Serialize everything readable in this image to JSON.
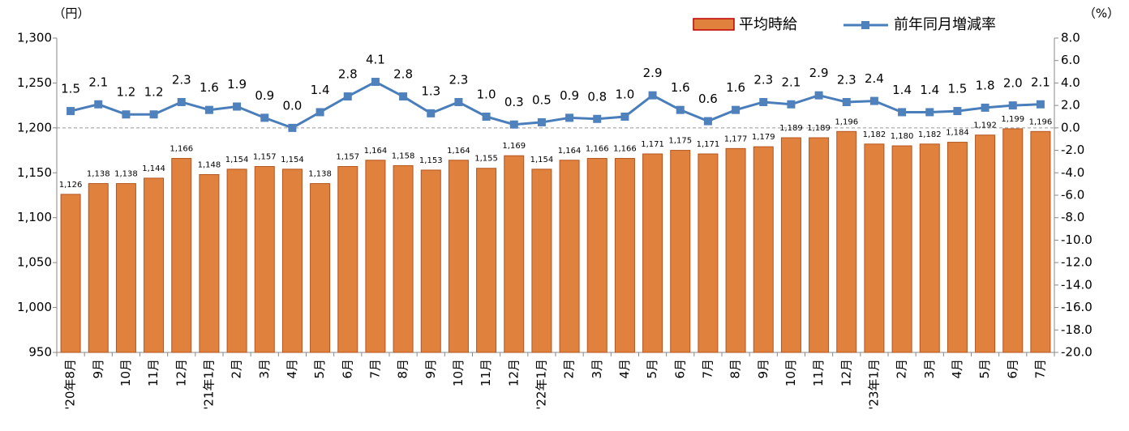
{
  "chart_data": {
    "type": "combo",
    "y_unit": "（円）",
    "y2_unit": "（%）",
    "categories": [
      "'20年8月",
      "9月",
      "10月",
      "11月",
      "12月",
      "'21年1月",
      "2月",
      "3月",
      "4月",
      "5月",
      "6月",
      "7月",
      "8月",
      "9月",
      "10月",
      "11月",
      "12月",
      "'22年1月",
      "2月",
      "3月",
      "4月",
      "5月",
      "6月",
      "7月",
      "8月",
      "9月",
      "10月",
      "11月",
      "12月",
      "'23年1月",
      "2月",
      "3月",
      "4月",
      "5月",
      "6月",
      "7月"
    ],
    "series": [
      {
        "name": "平均時給",
        "type": "bar",
        "color": "#e1813e",
        "edge_color": "#b4541c",
        "values": [
          1126,
          1138,
          1138,
          1144,
          1166,
          1148,
          1154,
          1157,
          1154,
          1138,
          1157,
          1164,
          1158,
          1153,
          1164,
          1155,
          1169,
          1154,
          1164,
          1166,
          1166,
          1171,
          1175,
          1171,
          1177,
          1179,
          1189,
          1189,
          1196,
          1182,
          1180,
          1182,
          1184,
          1192,
          1199,
          1196
        ],
        "value_labels": [
          "1,126",
          "1,138",
          "1,138",
          "1,144",
          "1,166",
          "1,148",
          "1,154",
          "1,157",
          "1,154",
          "1,138",
          "1,157",
          "1,164",
          "1,158",
          "1,153",
          "1,164",
          "1,155",
          "1,169",
          "1,154",
          "1,164",
          "1,166",
          "1,166",
          "1,171",
          "1,175",
          "1,171",
          "1,177",
          "1,179",
          "1,189",
          "1,189",
          "1,196",
          "1,182",
          "1,180",
          "1,182",
          "1,184",
          "1,192",
          "1,199",
          "1,196"
        ]
      },
      {
        "name": "前年同月増減率",
        "type": "line",
        "axis": "y2",
        "color": "#4a7ebb",
        "marker_color": "#4f81bd",
        "values": [
          1.5,
          2.1,
          1.2,
          1.2,
          2.3,
          1.6,
          1.9,
          0.9,
          0.0,
          1.4,
          2.8,
          4.1,
          2.8,
          1.3,
          2.3,
          1.0,
          0.3,
          0.5,
          0.9,
          0.8,
          1.0,
          2.9,
          1.6,
          0.6,
          1.6,
          2.3,
          2.1,
          2.9,
          2.3,
          2.4,
          1.4,
          1.4,
          1.5,
          1.8,
          2.0,
          2.1
        ],
        "value_labels": [
          "1.5",
          "2.1",
          "1.2",
          "1.2",
          "2.3",
          "1.6",
          "1.9",
          "0.9",
          "0.0",
          "1.4",
          "2.8",
          "4.1",
          "2.8",
          "1.3",
          "2.3",
          "1.0",
          "0.3",
          "0.5",
          "0.9",
          "0.8",
          "1.0",
          "2.9",
          "1.6",
          "0.6",
          "1.6",
          "2.3",
          "2.1",
          "2.9",
          "2.3",
          "2.4",
          "1.4",
          "1.4",
          "1.5",
          "1.8",
          "2.0",
          "2.1"
        ]
      }
    ],
    "ylim": [
      950,
      1300
    ],
    "yticks": [
      950,
      {
        "value": 1000,
        "label": "1,000"
      },
      {
        "value": 1050,
        "label": "1,050"
      },
      {
        "value": 1100,
        "label": "1,100"
      },
      {
        "value": 1150,
        "label": "1,150"
      },
      {
        "value": 1200,
        "label": "1,200"
      },
      {
        "value": 1250,
        "label": "1,250"
      },
      {
        "value": 1300,
        "label": "1,300"
      }
    ],
    "y2lim": [
      -20,
      8
    ],
    "y2ticks": [
      {
        "value": -20,
        "label": "-20.0"
      },
      {
        "value": -18,
        "label": "-18.0"
      },
      {
        "value": -16,
        "label": "-16.0"
      },
      {
        "value": -14,
        "label": "-14.0"
      },
      {
        "value": -12,
        "label": "-12.0"
      },
      {
        "value": -10,
        "label": "-10.0"
      },
      {
        "value": -8,
        "label": "-8.0"
      },
      {
        "value": -6,
        "label": "-6.0"
      },
      {
        "value": -4,
        "label": "-4.0"
      },
      {
        "value": -2,
        "label": "-2.0"
      },
      {
        "value": 0,
        "label": "0.0"
      },
      {
        "value": 2,
        "label": "2.0"
      },
      {
        "value": 4,
        "label": "4.0"
      },
      {
        "value": 6,
        "label": "6.0"
      },
      {
        "value": 8,
        "label": "8.0"
      }
    ],
    "y2_zero_line": true,
    "grid": false,
    "legend": "top-right"
  }
}
